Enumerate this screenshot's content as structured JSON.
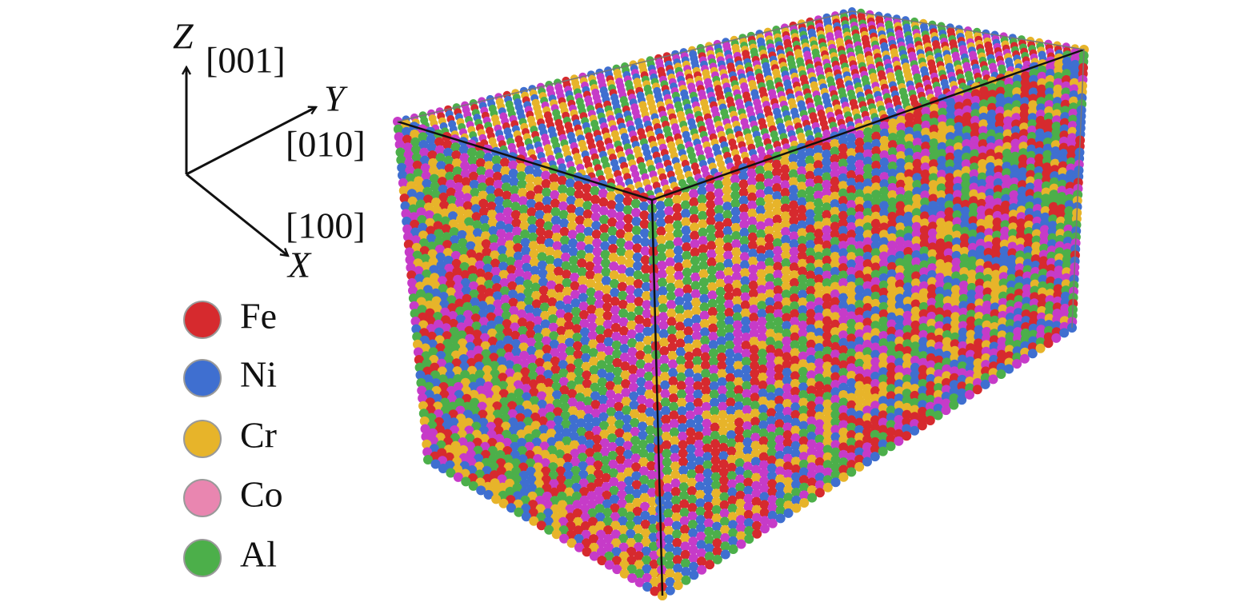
{
  "axes": {
    "z": {
      "label": "Z",
      "direction": "[001]"
    },
    "y": {
      "label": "Y",
      "direction": "[010]"
    },
    "x": {
      "label": "X",
      "direction": "[100]"
    }
  },
  "legend": [
    {
      "label": "Fe",
      "color": "#d62a2e"
    },
    {
      "label": "Ni",
      "color": "#3f6fd0"
    },
    {
      "label": "Cr",
      "color": "#e7b42a"
    },
    {
      "label": "Co",
      "color": "#e986b0"
    },
    {
      "label": "Al",
      "color": "#4caf4a"
    }
  ]
}
